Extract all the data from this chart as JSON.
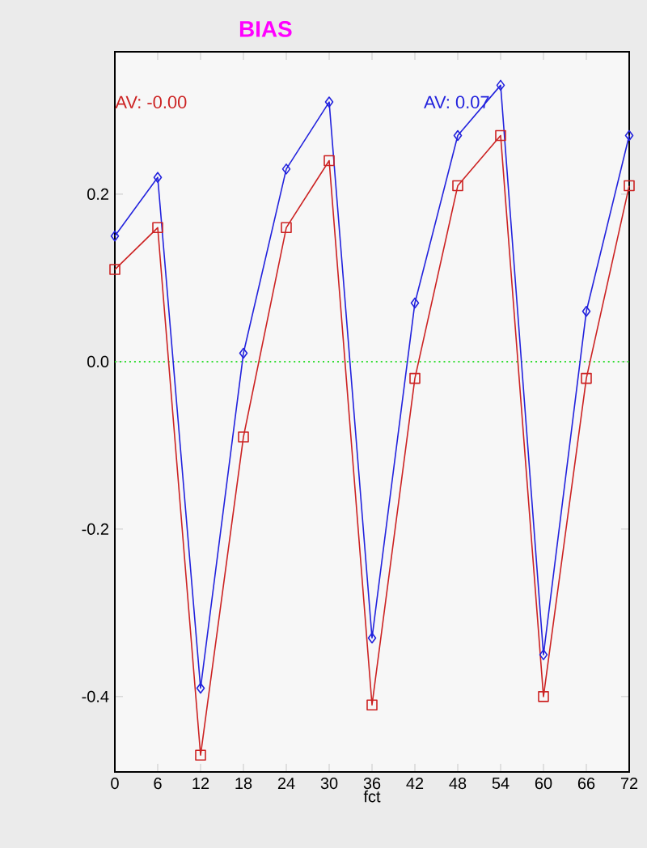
{
  "chart_data": {
    "type": "line",
    "title": "BIAS",
    "xlabel": "fct",
    "x": [
      0,
      6,
      12,
      18,
      24,
      30,
      36,
      42,
      48,
      54,
      60,
      66,
      72
    ],
    "series": [
      {
        "color": "#cc2222",
        "marker": "square",
        "values": [
          0.11,
          0.16,
          -0.47,
          -0.09,
          0.16,
          0.24,
          -0.41,
          -0.02,
          0.21,
          0.27,
          -0.4,
          -0.02,
          0.21
        ]
      },
      {
        "color": "#2222dd",
        "marker": "diamond",
        "values": [
          0.15,
          0.22,
          -0.39,
          0.01,
          0.23,
          0.31,
          -0.33,
          0.07,
          0.27,
          0.33,
          -0.35,
          0.06,
          0.27
        ]
      }
    ],
    "annotations": [
      "AV:  -0.00",
      "AV:  0.07"
    ],
    "xlim": [
      0,
      72
    ],
    "ylim": [
      -0.49,
      0.37
    ],
    "xticks": [
      0,
      6,
      12,
      18,
      24,
      30,
      36,
      42,
      48,
      54,
      60,
      66,
      72
    ],
    "yticks": [
      {
        "value": -0.4,
        "label": "-0.4"
      },
      {
        "value": -0.2,
        "label": "-0.2"
      },
      {
        "value": 0,
        "label": "0.0"
      },
      {
        "value": 0.2,
        "label": "0.2"
      }
    ],
    "ref_lines": [
      {
        "axis": "y",
        "value": 0,
        "color": "#33dd33",
        "line_style": "dotted"
      }
    ],
    "grid": false
  }
}
